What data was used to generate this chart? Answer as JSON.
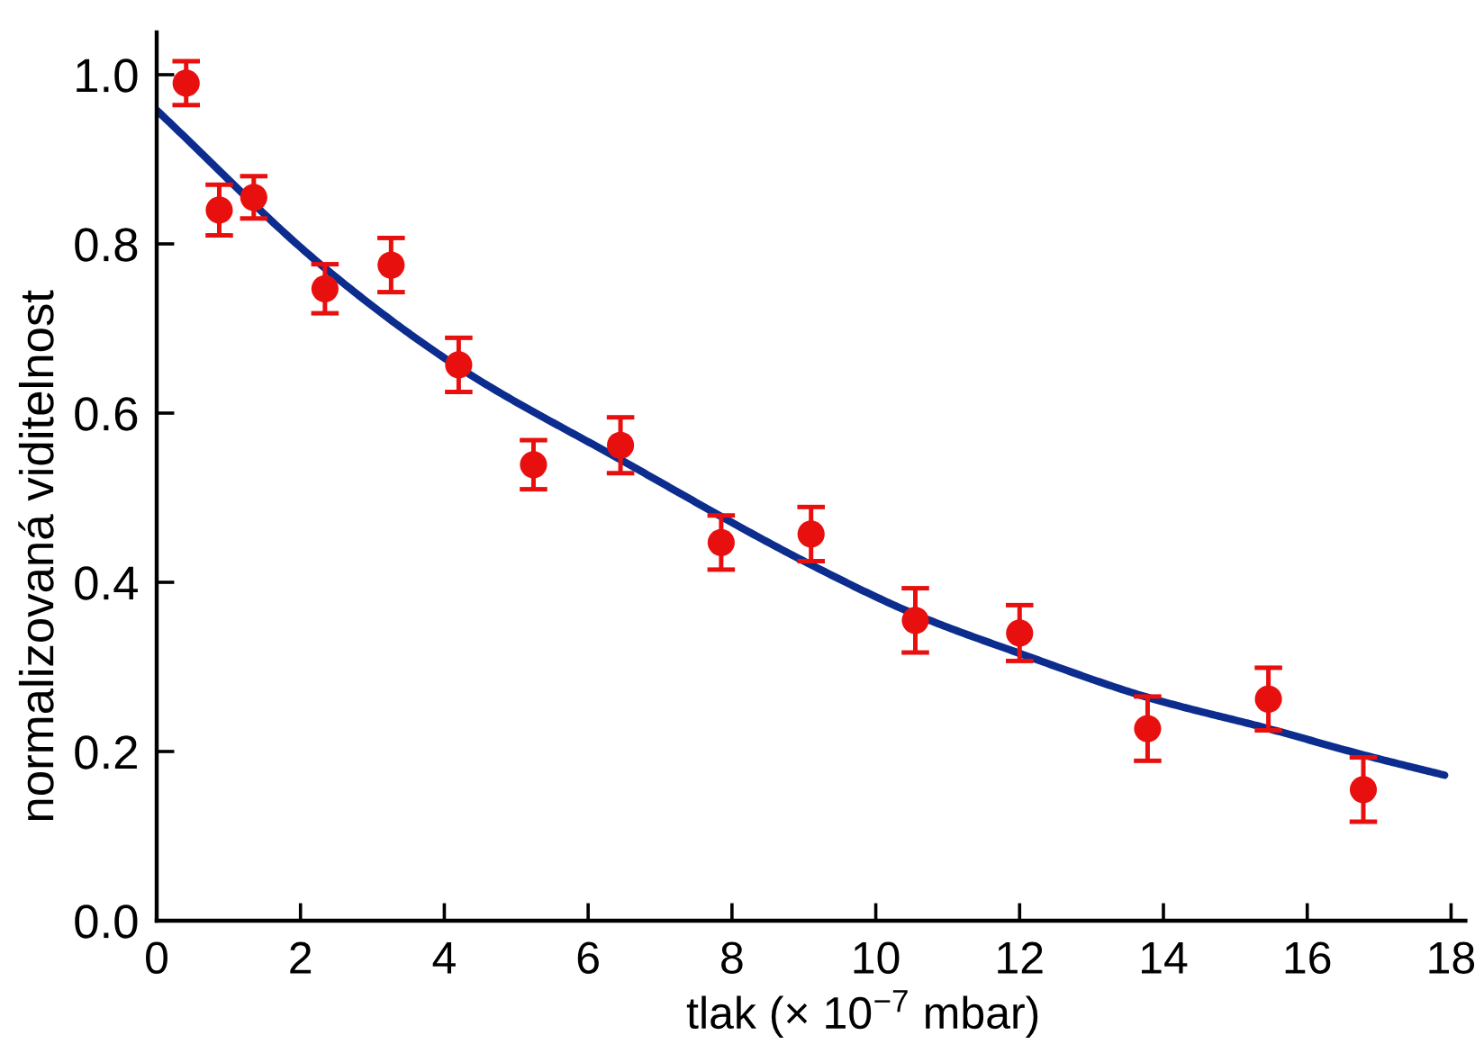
{
  "chart_data": {
    "type": "scatter",
    "xlabel": "tlak (× 10$^{−7}$ mbar)",
    "ylabel": "normalizovaná viditelnost",
    "xlim": [
      0,
      18.2
    ],
    "ylim": [
      0,
      1.05
    ],
    "xticks": [
      0,
      2,
      4,
      6,
      8,
      10,
      12,
      14,
      16,
      18
    ],
    "yticks": [
      {
        "value": 0,
        "label": "0.0"
      },
      0.2,
      0.4,
      0.6,
      0.8,
      {
        "value": 1,
        "label": "1.0"
      }
    ],
    "series": [
      {
        "color": "#e8100e",
        "marker": "circle",
        "x": [
          0.41,
          0.87,
          1.35,
          2.34,
          3.26,
          4.2,
          5.24,
          6.45,
          7.85,
          9.1,
          10.55,
          12.0,
          13.78,
          15.46,
          16.78
        ],
        "values": [
          0.99,
          0.84,
          0.855,
          0.747,
          0.775,
          0.657,
          0.539,
          0.562,
          0.447,
          0.457,
          0.355,
          0.34,
          0.227,
          0.262,
          0.155
        ],
        "errors": [
          0.026,
          0.03,
          0.025,
          0.029,
          0.032,
          0.032,
          0.029,
          0.033,
          0.032,
          0.032,
          0.038,
          0.033,
          0.038,
          0.037,
          0.038
        ]
      },
      {
        "type": "line",
        "color": "#0c2d8e",
        "marker": "none",
        "line_style": "solid",
        "x": [
          0,
          2.33,
          4.2,
          6.45,
          9.07,
          10.55,
          12.0,
          13.78,
          15.46,
          16.78,
          17.91
        ],
        "values": [
          0.958,
          0.772,
          0.654,
          0.545,
          0.422,
          0.362,
          0.316,
          0.264,
          0.227,
          0.196,
          0.172
        ]
      }
    ]
  }
}
